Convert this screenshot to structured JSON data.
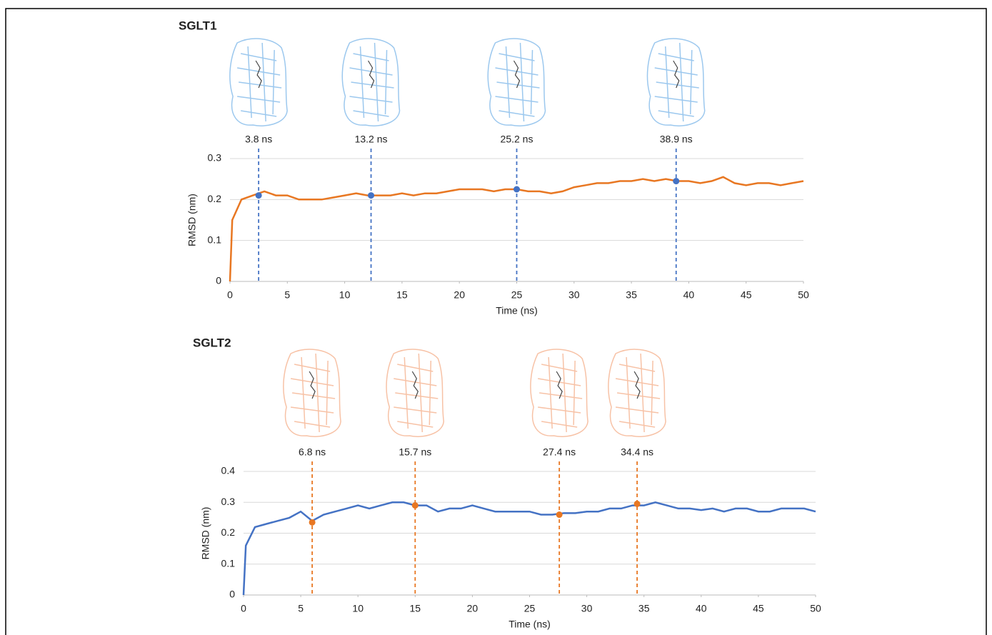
{
  "chart_data": [
    {
      "type": "line",
      "title": "SGLT1",
      "xlabel": "Time (ns)",
      "ylabel": "RMSD (nm)",
      "x": [
        0,
        0.2,
        1,
        2,
        3,
        4,
        5,
        6,
        7,
        8,
        9,
        10,
        11,
        12,
        13,
        14,
        15,
        16,
        17,
        18,
        19,
        20,
        21,
        22,
        23,
        24,
        25,
        26,
        27,
        28,
        29,
        30,
        31,
        32,
        33,
        34,
        35,
        36,
        37,
        38,
        39,
        40,
        41,
        42,
        43,
        44,
        45,
        46,
        47,
        48,
        49,
        50
      ],
      "series": [
        {
          "color": "#e87722",
          "values": [
            0,
            0.15,
            0.2,
            0.21,
            0.22,
            0.21,
            0.21,
            0.2,
            0.2,
            0.2,
            0.205,
            0.21,
            0.215,
            0.21,
            0.21,
            0.21,
            0.215,
            0.21,
            0.215,
            0.215,
            0.22,
            0.225,
            0.225,
            0.225,
            0.22,
            0.225,
            0.225,
            0.22,
            0.22,
            0.215,
            0.22,
            0.23,
            0.235,
            0.24,
            0.24,
            0.245,
            0.245,
            0.25,
            0.245,
            0.25,
            0.245,
            0.245,
            0.24,
            0.245,
            0.255,
            0.24,
            0.235,
            0.24,
            0.24,
            0.235,
            0.24,
            0.245
          ]
        }
      ],
      "xlim": [
        0,
        50
      ],
      "ylim": [
        0,
        0.3
      ],
      "xticks": [
        0,
        5,
        10,
        15,
        20,
        25,
        30,
        35,
        40,
        45,
        50
      ],
      "yticks": [
        0,
        0.1,
        0.2,
        0.3
      ],
      "grid": true,
      "marker_color": "#4472c4",
      "annotations": [
        {
          "text": "3.8 ns",
          "x": 2.5,
          "y": 0.21
        },
        {
          "text": "13.2 ns",
          "x": 12.3,
          "y": 0.21
        },
        {
          "text": "25.2 ns",
          "x": 25,
          "y": 0.225
        },
        {
          "text": "38.9 ns",
          "x": 38.9,
          "y": 0.245
        }
      ]
    },
    {
      "type": "line",
      "title": "SGLT2",
      "xlabel": "Time (ns)",
      "ylabel": "RMSD (nm)",
      "x": [
        0,
        0.2,
        1,
        2,
        3,
        4,
        5,
        6,
        7,
        8,
        9,
        10,
        11,
        12,
        13,
        14,
        15,
        16,
        17,
        18,
        19,
        20,
        21,
        22,
        23,
        24,
        25,
        26,
        27,
        28,
        29,
        30,
        31,
        32,
        33,
        34,
        35,
        36,
        37,
        38,
        39,
        40,
        41,
        42,
        43,
        44,
        45,
        46,
        47,
        48,
        49,
        50
      ],
      "series": [
        {
          "color": "#4472c4",
          "values": [
            0,
            0.16,
            0.22,
            0.23,
            0.24,
            0.25,
            0.27,
            0.24,
            0.26,
            0.27,
            0.28,
            0.29,
            0.28,
            0.29,
            0.3,
            0.3,
            0.29,
            0.29,
            0.27,
            0.28,
            0.28,
            0.29,
            0.28,
            0.27,
            0.27,
            0.27,
            0.27,
            0.26,
            0.26,
            0.265,
            0.265,
            0.27,
            0.27,
            0.28,
            0.28,
            0.29,
            0.29,
            0.3,
            0.29,
            0.28,
            0.28,
            0.275,
            0.28,
            0.27,
            0.28,
            0.28,
            0.27,
            0.27,
            0.28,
            0.28,
            0.28,
            0.27
          ]
        }
      ],
      "xlim": [
        0,
        50
      ],
      "ylim": [
        0,
        0.4
      ],
      "xticks": [
        0,
        5,
        10,
        15,
        20,
        25,
        30,
        35,
        40,
        45,
        50
      ],
      "yticks": [
        0,
        0.1,
        0.2,
        0.3,
        0.4
      ],
      "grid": true,
      "marker_color": "#e87722",
      "annotations": [
        {
          "text": "6.8 ns",
          "x": 6,
          "y": 0.235
        },
        {
          "text": "15.7 ns",
          "x": 15,
          "y": 0.29
        },
        {
          "text": "27.4 ns",
          "x": 27.6,
          "y": 0.26
        },
        {
          "text": "34.4 ns",
          "x": 34.4,
          "y": 0.295
        }
      ]
    }
  ]
}
